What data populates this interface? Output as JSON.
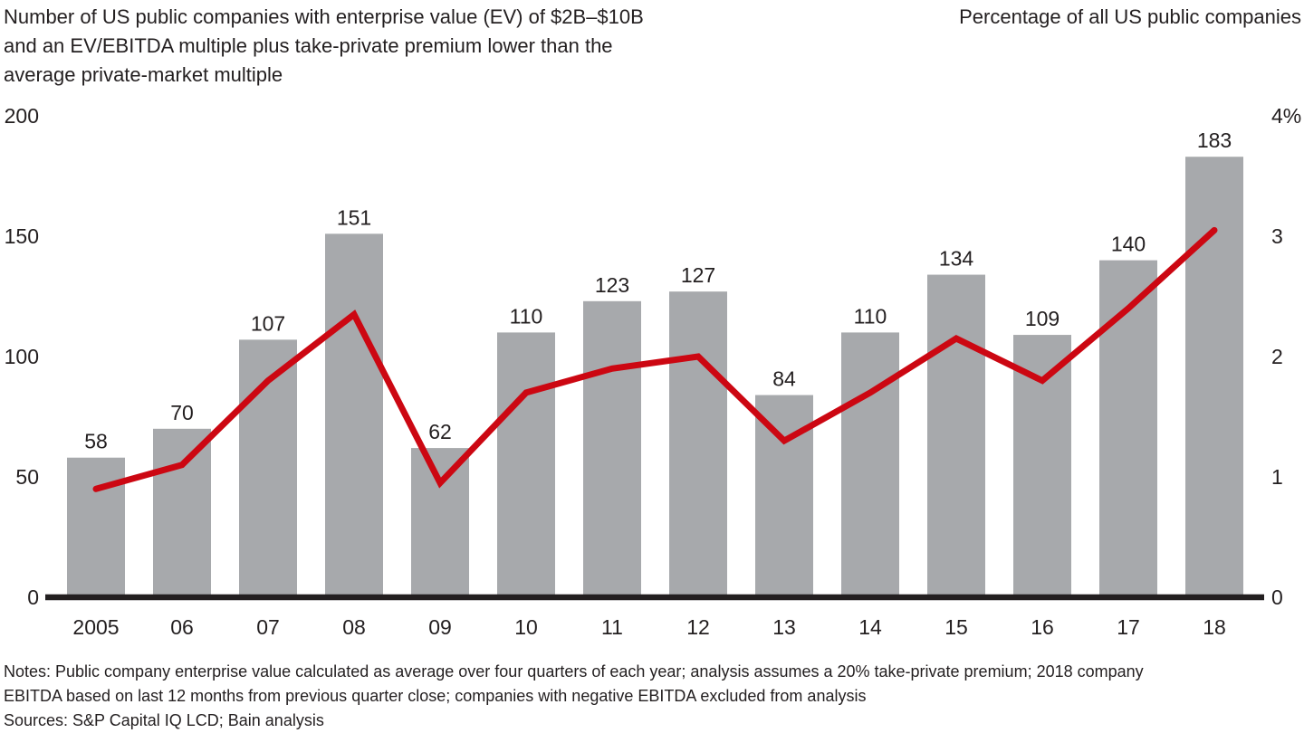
{
  "header": {
    "left_title_lines": [
      "Number of US public companies with enterprise value (EV) of $2B–$10B",
      "and an EV/EBITDA multiple plus take-private premium lower than the",
      "average private-market multiple"
    ],
    "right_title": "Percentage of all US public companies"
  },
  "footer": {
    "notes_lines": [
      "Notes: Public company enterprise value calculated as average over four quarters of each year; analysis assumes a 20% take-private premium; 2018 company",
      "EBITDA based on last 12 months from previous quarter close; companies with negative EBITDA excluded from analysis"
    ],
    "sources": "Sources: S&P Capital IQ LCD; Bain analysis"
  },
  "colors": {
    "bar": "#a7a9ac",
    "line": "#cc0712",
    "axis": "#231f20",
    "text": "#231f20"
  },
  "chart_data": {
    "type": "bar",
    "title": "Number of US public companies with enterprise value (EV) of $2B–$10B and an EV/EBITDA multiple plus take-private premium lower than the average private-market multiple",
    "categories": [
      "2005",
      "06",
      "07",
      "08",
      "09",
      "10",
      "11",
      "12",
      "13",
      "14",
      "15",
      "16",
      "17",
      "18"
    ],
    "series": [
      {
        "name": "Number of US public companies",
        "type": "bar",
        "axis": "left",
        "values": [
          58,
          70,
          107,
          151,
          62,
          110,
          123,
          127,
          84,
          110,
          134,
          109,
          140,
          183
        ]
      },
      {
        "name": "Percentage of all US public companies",
        "type": "line",
        "axis": "right",
        "values": [
          0.9,
          1.1,
          1.8,
          2.35,
          0.95,
          1.7,
          1.9,
          2.0,
          1.3,
          1.7,
          2.15,
          1.8,
          2.4,
          3.05
        ]
      }
    ],
    "left_axis": {
      "range": [
        0,
        200
      ],
      "ticks": [
        0,
        50,
        100,
        150,
        200
      ],
      "tick_labels": [
        "0",
        "50",
        "100",
        "150",
        "200"
      ]
    },
    "right_axis": {
      "range": [
        0,
        4
      ],
      "ticks": [
        0,
        1,
        2,
        3,
        4
      ],
      "tick_labels": [
        "0",
        "1",
        "2",
        "3",
        "4%"
      ]
    },
    "bar_labels_shown": true,
    "grid": false,
    "legend": "none"
  }
}
